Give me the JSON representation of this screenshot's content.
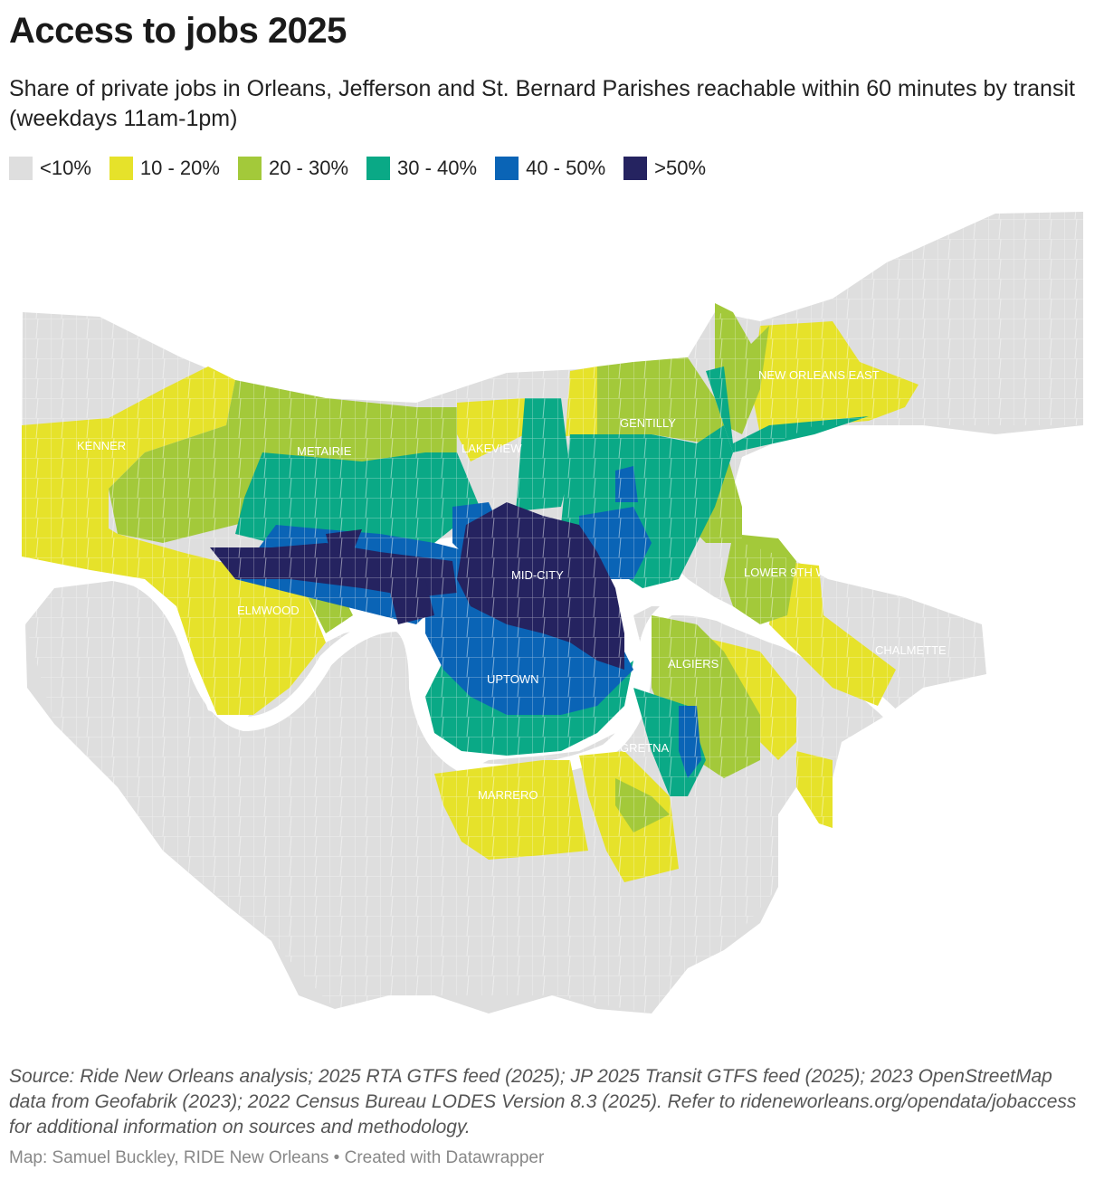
{
  "title": "Access to jobs 2025",
  "subtitle": "Share of private jobs in Orleans, Jefferson and St. Bernard Parishes reachable within 60 minutes by transit (weekdays 11am-1pm)",
  "legend": [
    {
      "label": "<10%",
      "color": "#dedede"
    },
    {
      "label": "10 - 20%",
      "color": "#e6e22a"
    },
    {
      "label": "20 - 30%",
      "color": "#a3c93a"
    },
    {
      "label": "30 - 40%",
      "color": "#0aa986"
    },
    {
      "label": "40 - 50%",
      "color": "#0a64b6"
    },
    {
      "label": ">50%",
      "color": "#252360"
    }
  ],
  "neighborhoods": [
    "KENNER",
    "METAIRIE",
    "LAKEVIEW",
    "GENTILLY",
    "NEW ORLEANS EAST",
    "MID-CITY",
    "LOWER 9TH WARD",
    "ELMWOOD",
    "CHALMETTE",
    "ALGIERS",
    "UPTOWN",
    "GRETNA",
    "MARRERO"
  ],
  "source": "Source: Ride New Orleans analysis; 2025 RTA GTFS feed (2025); JP 2025 Transit GTFS feed (2025); 2023 OpenStreetMap data from Geofabrik (2023); 2022 Census Bureau LODES Version 8.3 (2025). Refer to rideneworleans.org/opendata/jobaccess for additional information on sources and methodology.",
  "byline": "Map: Samuel Buckley, RIDE New Orleans • Created with Datawrapper"
}
